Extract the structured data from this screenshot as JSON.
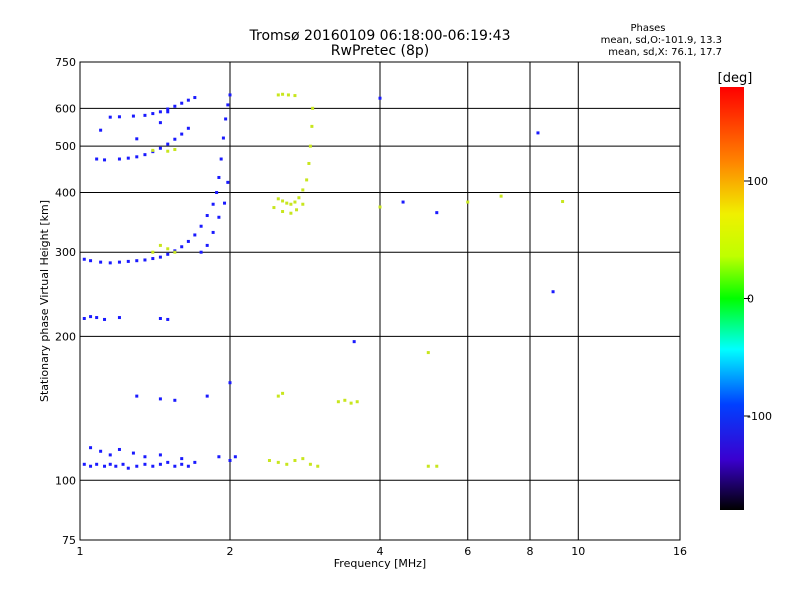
{
  "chart_data": {
    "type": "scatter",
    "title": "Tromsø 20160109 06:18:00-06:19:43",
    "subtitle": "RwPretec (8p)",
    "stats": {
      "heading": "Phases",
      "line1": "mean, sd,O:-101.9, 13.3",
      "line2": "mean, sd,X:  76.1, 17.7"
    },
    "xlabel": "Frequency [MHz]",
    "ylabel": "Stationary phase Virtual Height [km]",
    "x_scale": "log",
    "y_scale": "log",
    "xlim": [
      1,
      16
    ],
    "ylim": [
      75,
      750
    ],
    "x_ticks": [
      {
        "value": 1,
        "label": "1"
      },
      {
        "value": 2,
        "label": "2"
      },
      {
        "value": 4,
        "label": "4"
      },
      {
        "value": 6,
        "label": "6"
      },
      {
        "value": 8,
        "label": "8"
      },
      {
        "value": 10,
        "label": "10"
      },
      {
        "value": 16,
        "label": "16"
      }
    ],
    "y_ticks": [
      {
        "value": 75,
        "label": "75"
      },
      {
        "value": 100,
        "label": "100"
      },
      {
        "value": 200,
        "label": "200"
      },
      {
        "value": 300,
        "label": "300"
      },
      {
        "value": 400,
        "label": "400"
      },
      {
        "value": 500,
        "label": "500"
      },
      {
        "value": 600,
        "label": "600"
      },
      {
        "value": 750,
        "label": "750"
      }
    ],
    "grid": true,
    "colorbar": {
      "label": "[deg]",
      "range": [
        -180,
        180
      ],
      "ticks": [
        {
          "value": 100,
          "label": "100"
        },
        {
          "value": 0,
          "label": "0"
        },
        {
          "value": -100,
          "label": "-100"
        }
      ]
    },
    "series": [
      {
        "mode": "O",
        "points": [
          [
            1.02,
            108
          ],
          [
            1.05,
            107
          ],
          [
            1.08,
            108
          ],
          [
            1.12,
            107
          ],
          [
            1.15,
            108
          ],
          [
            1.18,
            107
          ],
          [
            1.22,
            108
          ],
          [
            1.25,
            106
          ],
          [
            1.3,
            107
          ],
          [
            1.35,
            108
          ],
          [
            1.4,
            107
          ],
          [
            1.45,
            108
          ],
          [
            1.5,
            109
          ],
          [
            1.55,
            107
          ],
          [
            1.6,
            108
          ],
          [
            1.65,
            107
          ],
          [
            1.7,
            109
          ],
          [
            1.05,
            117
          ],
          [
            1.1,
            115
          ],
          [
            1.15,
            113
          ],
          [
            1.2,
            116
          ],
          [
            1.28,
            114
          ],
          [
            1.35,
            112
          ],
          [
            1.45,
            113
          ],
          [
            1.6,
            111
          ],
          [
            1.02,
            218
          ],
          [
            1.05,
            220
          ],
          [
            1.08,
            219
          ],
          [
            1.12,
            217
          ],
          [
            1.2,
            219
          ],
          [
            1.45,
            218
          ],
          [
            1.5,
            217
          ],
          [
            1.02,
            290
          ],
          [
            1.05,
            288
          ],
          [
            1.1,
            286
          ],
          [
            1.15,
            285
          ],
          [
            1.2,
            286
          ],
          [
            1.25,
            287
          ],
          [
            1.3,
            288
          ],
          [
            1.35,
            289
          ],
          [
            1.4,
            291
          ],
          [
            1.45,
            293
          ],
          [
            1.5,
            297
          ],
          [
            1.55,
            302
          ],
          [
            1.6,
            308
          ],
          [
            1.65,
            316
          ],
          [
            1.7,
            326
          ],
          [
            1.75,
            340
          ],
          [
            1.8,
            358
          ],
          [
            1.85,
            378
          ],
          [
            1.88,
            400
          ],
          [
            1.9,
            430
          ],
          [
            1.92,
            470
          ],
          [
            1.94,
            520
          ],
          [
            1.96,
            570
          ],
          [
            1.98,
            610
          ],
          [
            2.0,
            640
          ],
          [
            1.75,
            300
          ],
          [
            1.8,
            310
          ],
          [
            1.85,
            330
          ],
          [
            1.9,
            355
          ],
          [
            1.95,
            380
          ],
          [
            1.98,
            420
          ],
          [
            1.08,
            470
          ],
          [
            1.12,
            468
          ],
          [
            1.2,
            470
          ],
          [
            1.25,
            472
          ],
          [
            1.3,
            475
          ],
          [
            1.35,
            480
          ],
          [
            1.4,
            487
          ],
          [
            1.45,
            495
          ],
          [
            1.5,
            505
          ],
          [
            1.55,
            517
          ],
          [
            1.6,
            530
          ],
          [
            1.65,
            545
          ],
          [
            1.15,
            575
          ],
          [
            1.2,
            576
          ],
          [
            1.28,
            578
          ],
          [
            1.35,
            580
          ],
          [
            1.4,
            585
          ],
          [
            1.45,
            590
          ],
          [
            1.5,
            598
          ],
          [
            1.55,
            606
          ],
          [
            1.6,
            615
          ],
          [
            1.65,
            624
          ],
          [
            1.7,
            632
          ],
          [
            1.1,
            540
          ],
          [
            1.3,
            518
          ],
          [
            1.45,
            560
          ],
          [
            1.5,
            590
          ],
          [
            1.3,
            150
          ],
          [
            1.45,
            148
          ],
          [
            1.55,
            147
          ],
          [
            1.8,
            150
          ],
          [
            2.0,
            160
          ],
          [
            2.0,
            110
          ],
          [
            2.05,
            112
          ],
          [
            1.9,
            112
          ],
          [
            3.55,
            195
          ],
          [
            4.45,
            382
          ],
          [
            5.2,
            363
          ],
          [
            8.3,
            533
          ],
          [
            8.9,
            248
          ],
          [
            4.0,
            630
          ]
        ]
      },
      {
        "mode": "X",
        "points": [
          [
            2.5,
            388
          ],
          [
            2.55,
            384
          ],
          [
            2.6,
            380
          ],
          [
            2.65,
            378
          ],
          [
            2.7,
            382
          ],
          [
            2.75,
            390
          ],
          [
            2.8,
            405
          ],
          [
            2.85,
            425
          ],
          [
            2.88,
            460
          ],
          [
            2.9,
            500
          ],
          [
            2.92,
            550
          ],
          [
            2.93,
            600
          ],
          [
            2.45,
            372
          ],
          [
            2.55,
            365
          ],
          [
            2.65,
            362
          ],
          [
            2.72,
            368
          ],
          [
            2.8,
            378
          ],
          [
            2.5,
            640
          ],
          [
            2.55,
            642
          ],
          [
            2.62,
            640
          ],
          [
            2.7,
            638
          ],
          [
            2.4,
            110
          ],
          [
            2.5,
            109
          ],
          [
            2.6,
            108
          ],
          [
            2.7,
            110
          ],
          [
            2.8,
            111
          ],
          [
            2.9,
            108
          ],
          [
            3.0,
            107
          ],
          [
            3.3,
            146
          ],
          [
            3.4,
            147
          ],
          [
            3.5,
            145
          ],
          [
            3.6,
            146
          ],
          [
            2.5,
            150
          ],
          [
            2.55,
            152
          ],
          [
            1.4,
            300
          ],
          [
            1.5,
            305
          ],
          [
            1.45,
            310
          ],
          [
            1.55,
            300
          ],
          [
            1.4,
            490
          ],
          [
            1.5,
            488
          ],
          [
            1.55,
            492
          ],
          [
            5.2,
            107
          ],
          [
            5.0,
            107
          ],
          [
            6.0,
            382
          ],
          [
            7.0,
            393
          ],
          [
            9.3,
            383
          ],
          [
            4.0,
            373
          ],
          [
            5.0,
            185
          ]
        ]
      }
    ]
  }
}
